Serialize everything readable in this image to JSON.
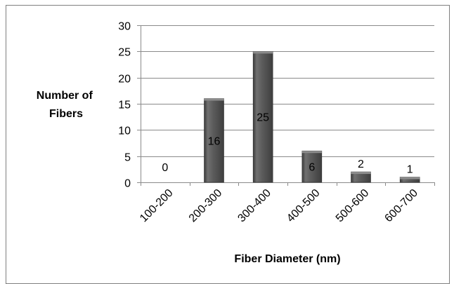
{
  "chart_data": {
    "type": "bar",
    "title": "",
    "xlabel": "Fiber Diameter (nm)",
    "ylabel": [
      "Number of",
      "Fibers"
    ],
    "categories": [
      "100-200",
      "200-300",
      "300-400",
      "400-500",
      "500-600",
      "600-700"
    ],
    "values": [
      0,
      16,
      25,
      6,
      2,
      1
    ],
    "ylim": [
      0,
      30
    ],
    "yticks": [
      0,
      5,
      10,
      15,
      20,
      25,
      30
    ],
    "grid": true,
    "legend": "none",
    "colors": {
      "bar": "#595959",
      "bar_light": "#8c8c8c",
      "bar_dark": "#3a3a3a",
      "grid": "#8a8a8a",
      "axis": "#8a8a8a"
    }
  }
}
